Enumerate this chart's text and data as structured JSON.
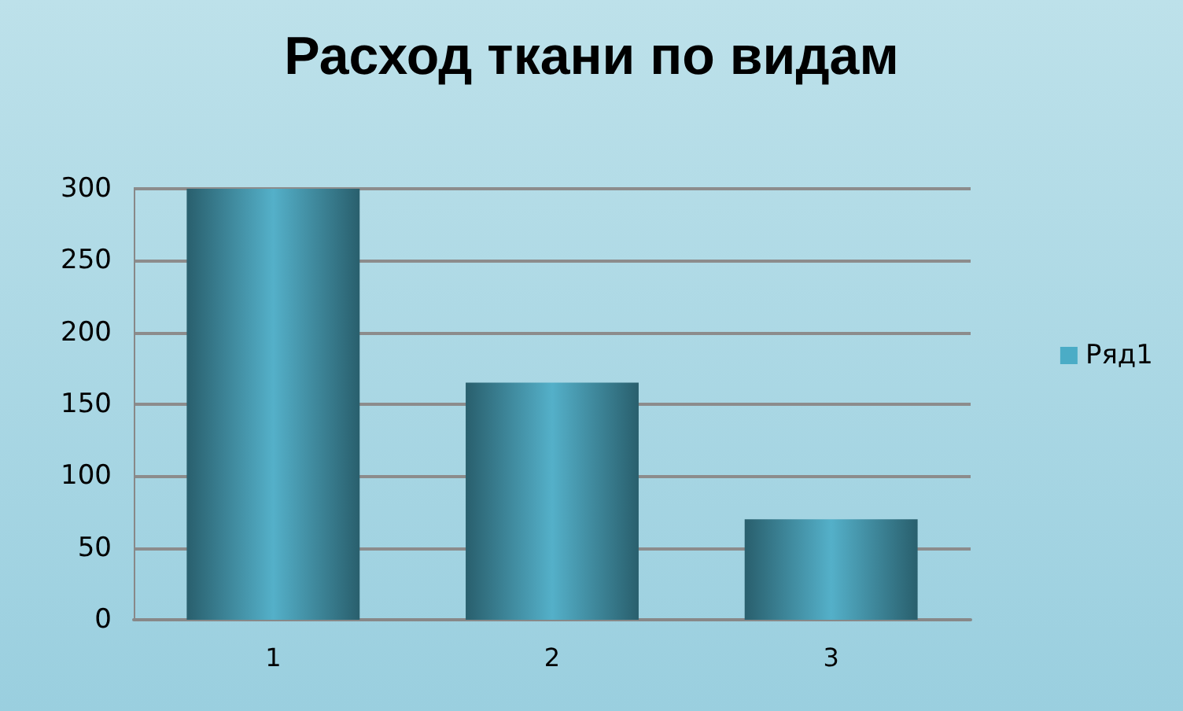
{
  "chart_data": {
    "type": "bar",
    "title": "Расход ткани по видам",
    "categories": [
      "1",
      "2",
      "3"
    ],
    "series": [
      {
        "name": "Ряд1",
        "color": "#4bacc6",
        "values": [
          300,
          165,
          70
        ]
      }
    ],
    "ylim": [
      0,
      300
    ],
    "yticks": [
      0,
      50,
      100,
      150,
      200,
      250,
      300
    ],
    "grid": "y",
    "legend": "right"
  }
}
